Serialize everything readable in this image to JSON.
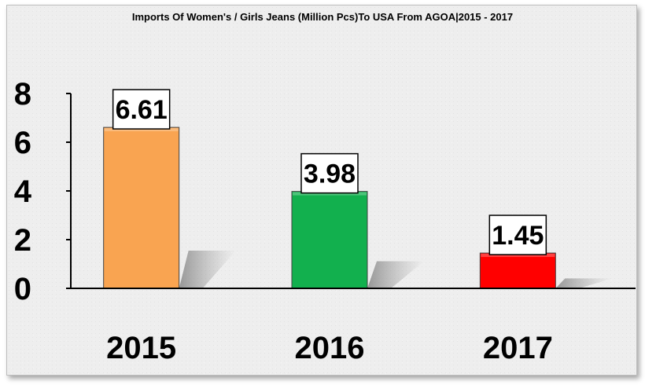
{
  "chart_data": {
    "type": "bar",
    "title": "Imports Of Women's / Girls Jeans (Million Pcs)To USA From AGOA|2015 - 2017",
    "categories": [
      "2015",
      "2016",
      "2017"
    ],
    "values": [
      6.61,
      3.98,
      1.45
    ],
    "data_labels": [
      "6.61",
      "3.98",
      "1.45"
    ],
    "bar_colors": [
      "#f9a451",
      "#12b04e",
      "#ff0000"
    ],
    "ylim": [
      0,
      8
    ],
    "yticks": [
      "0",
      "2",
      "4",
      "6",
      "8"
    ],
    "xlabel": "",
    "ylabel": "",
    "grid": false,
    "legend": "none"
  }
}
